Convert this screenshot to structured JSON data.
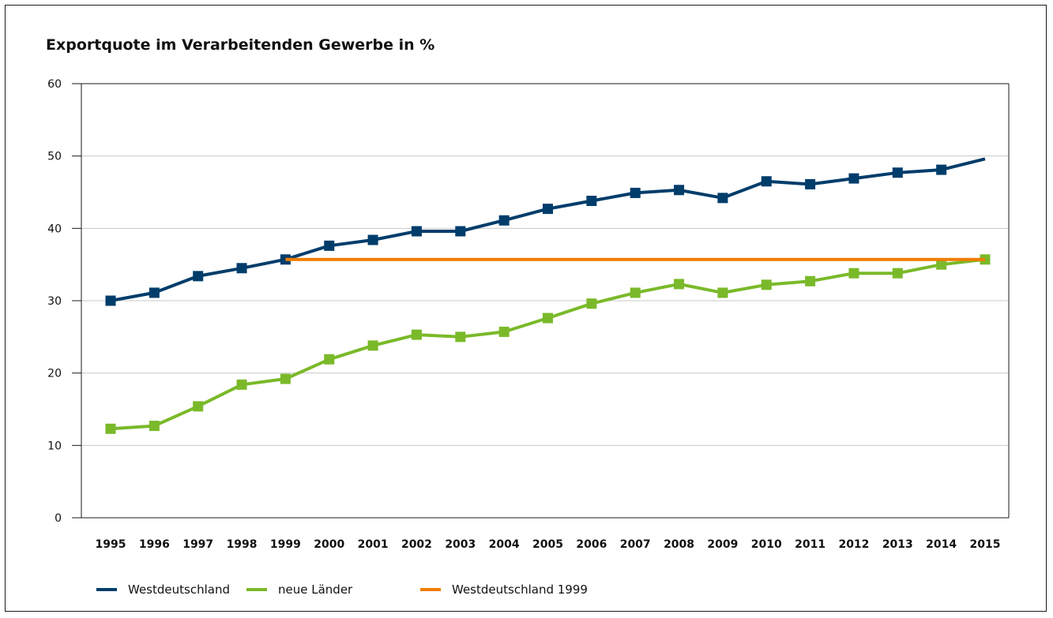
{
  "chart_data": {
    "type": "line",
    "title": "Exportquote im Verarbeitenden Gewerbe in %",
    "xlabel": "",
    "ylabel": "",
    "ylim": [
      0,
      60
    ],
    "yticks": [
      "0",
      "10",
      "20",
      "30",
      "40",
      "50",
      "60"
    ],
    "x": [
      "1995",
      "1996",
      "1997",
      "1998",
      "1999",
      "2000",
      "2001",
      "2002",
      "2003",
      "2004",
      "2005",
      "2006",
      "2007",
      "2008",
      "2009",
      "2010",
      "2011",
      "2012",
      "2013",
      "2014",
      "2015"
    ],
    "grid": true,
    "legend_position": "bottom",
    "series": [
      {
        "name": "Westdeutschland",
        "color": "#003d6b",
        "markers": true,
        "values": [
          30.0,
          31.1,
          33.4,
          34.5,
          35.7,
          37.6,
          38.4,
          39.6,
          39.6,
          41.1,
          42.7,
          43.8,
          44.9,
          45.3,
          44.2,
          46.5,
          46.1,
          46.9,
          47.7,
          48.1,
          null
        ]
      },
      {
        "name": "neue Länder",
        "color": "#7ab929",
        "markers": true,
        "values": [
          12.3,
          12.7,
          15.4,
          18.4,
          19.2,
          21.9,
          23.8,
          25.3,
          25.0,
          25.7,
          27.6,
          29.6,
          31.1,
          32.3,
          31.1,
          32.2,
          32.7,
          33.8,
          33.8,
          35.0,
          35.7
        ]
      },
      {
        "name": "Westdeutschland 1999",
        "color": "#ef7d00",
        "markers": false,
        "values": [
          null,
          null,
          null,
          null,
          35.7,
          35.7,
          35.7,
          35.7,
          35.7,
          35.7,
          35.7,
          35.7,
          35.7,
          35.7,
          35.7,
          35.7,
          35.7,
          35.7,
          35.7,
          35.7,
          35.7
        ]
      }
    ],
    "unmarked_endpoint": {
      "series": "Westdeutschland",
      "x": "2015",
      "value": 49.6
    }
  }
}
